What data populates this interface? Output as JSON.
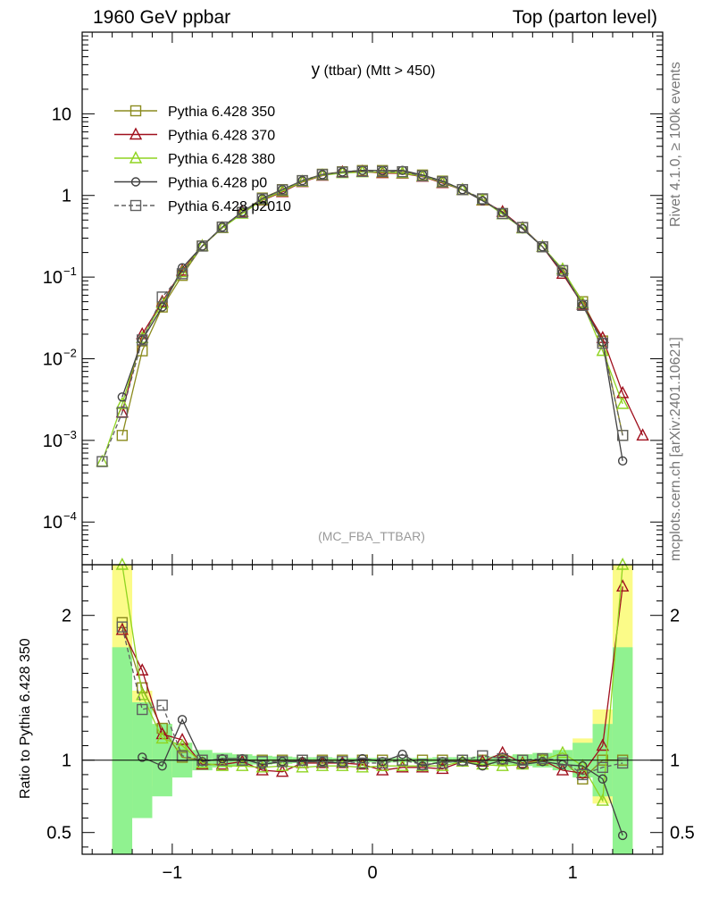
{
  "header": {
    "left": "1960 GeV ppbar",
    "right": "Top (parton level)"
  },
  "side_text": {
    "top": "Rivet 4.1.0, ≥ 100k events",
    "bottom": "mcplots.cern.ch [arXiv:2401.10621]"
  },
  "plot_title": {
    "main": "y",
    "sub": " (ttbar) (Mtt > 450)"
  },
  "watermark": "(MC_FBA_TTBAR)",
  "ratio_ylabel": "Ratio to Pythia 6.428 350",
  "colors": {
    "p350": "#8b8b1e",
    "p370": "#a0101e",
    "p380": "#8fd420",
    "p0": "#404040",
    "p2010": "#606060",
    "band_green": "#90f290",
    "band_yellow": "#fbfb88"
  },
  "chart_data": {
    "type": "line",
    "main": {
      "yscale": "log",
      "xlim": [
        -1.45,
        1.45
      ],
      "ylim": [
        3e-05,
        100
      ],
      "x_ticks": [
        -1,
        0,
        1
      ],
      "x_tick_labels": [
        "−1",
        "0",
        "1"
      ],
      "y_ticks": [
        0.0001,
        0.001,
        0.01,
        0.1,
        1,
        10
      ],
      "y_tick_labels": [
        [
          "10",
          "−4"
        ],
        [
          "10",
          "−3"
        ],
        [
          "10",
          "−2"
        ],
        [
          "10",
          "−1"
        ],
        [
          "1",
          ""
        ],
        [
          "10",
          ""
        ]
      ],
      "legend_position": "top-left",
      "legend": [
        "Pythia 6.428 350",
        "Pythia 6.428 370",
        "Pythia 6.428 380",
        "Pythia 6.428 p0",
        "Pythia 6.428 p2010"
      ],
      "x": [
        -1.35,
        -1.25,
        -1.15,
        -1.05,
        -0.95,
        -0.85,
        -0.75,
        -0.65,
        -0.55,
        -0.45,
        -0.35,
        -0.25,
        -0.15,
        -0.05,
        0.05,
        0.15,
        0.25,
        0.35,
        0.45,
        0.55,
        0.65,
        0.75,
        0.85,
        0.95,
        1.05,
        1.15,
        1.25,
        1.35
      ],
      "series": [
        {
          "name": "Pythia 6.428 350",
          "key": "p350",
          "marker": "square",
          "dash": false,
          "values": [
            null,
            0.00115,
            0.0125,
            0.043,
            0.105,
            0.24,
            0.41,
            0.62,
            0.93,
            1.18,
            1.52,
            1.82,
            1.95,
            2.02,
            2.02,
            1.95,
            1.78,
            1.5,
            1.18,
            0.89,
            0.6,
            0.405,
            0.235,
            0.12,
            0.05,
            0.0165,
            0.00115,
            null
          ]
        },
        {
          "name": "Pythia 6.428 370",
          "key": "p370",
          "marker": "triangle",
          "dash": false,
          "values": [
            null,
            0.0022,
            0.02,
            0.05,
            0.12,
            0.24,
            0.4,
            0.63,
            0.87,
            1.1,
            1.46,
            1.75,
            1.93,
            1.96,
            1.88,
            1.86,
            1.7,
            1.42,
            1.17,
            0.87,
            0.63,
            0.4,
            0.235,
            0.11,
            0.046,
            0.018,
            0.0038,
            0.00115
          ]
        },
        {
          "name": "Pythia 6.428 380",
          "key": "p380",
          "marker": "triangle",
          "dash": false,
          "values": [
            0.00055,
            0.0028,
            0.018,
            0.048,
            0.115,
            0.24,
            0.4,
            0.6,
            0.88,
            1.13,
            1.48,
            1.77,
            1.88,
            1.93,
            1.93,
            1.88,
            1.72,
            1.45,
            1.17,
            0.88,
            0.59,
            0.395,
            0.235,
            0.125,
            0.048,
            0.0125,
            0.0028,
            null
          ]
        },
        {
          "name": "Pythia 6.428 p0",
          "key": "p0",
          "marker": "circle",
          "dash": false,
          "values": [
            null,
            0.0034,
            0.017,
            0.043,
            0.13,
            0.24,
            0.41,
            0.63,
            0.91,
            1.18,
            1.52,
            1.8,
            1.94,
            2.03,
            2.01,
            2.03,
            1.78,
            1.5,
            1.18,
            0.86,
            0.62,
            0.39,
            0.235,
            0.115,
            0.046,
            0.016,
            0.00056,
            null
          ]
        },
        {
          "name": "Pythia 6.428 p2010",
          "key": "p2010",
          "marker": "square",
          "dash": true,
          "values": [
            0.00055,
            0.0022,
            0.017,
            0.057,
            0.11,
            0.24,
            0.41,
            0.62,
            0.91,
            1.17,
            1.52,
            1.8,
            1.93,
            1.97,
            1.97,
            1.95,
            1.74,
            1.47,
            1.18,
            0.91,
            0.6,
            0.405,
            0.235,
            0.12,
            0.045,
            0.0155,
            0.00115,
            null
          ]
        }
      ]
    },
    "ratio": {
      "ylabel": "Ratio to Pythia 6.428 350",
      "ylim": [
        0.35,
        2.35
      ],
      "y_ticks": [
        0.5,
        1,
        2
      ],
      "y_tick_labels": [
        "0.5",
        "1",
        "2"
      ],
      "band_edges": [
        -1.3,
        -1.2,
        -1.1,
        -1.0,
        -0.9,
        -0.8,
        -0.7,
        -0.6,
        -0.5,
        -0.4,
        -0.3,
        -0.2,
        -0.1,
        0.0,
        0.1,
        0.2,
        0.3,
        0.4,
        0.5,
        0.6,
        0.7,
        0.8,
        0.9,
        1.0,
        1.1,
        1.2,
        1.3
      ],
      "band_green_lo": [
        0,
        0.6,
        0.75,
        0.88,
        0.93,
        0.95,
        0.96,
        0.97,
        0.975,
        0.98,
        0.98,
        0.985,
        0.985,
        0.985,
        0.985,
        0.985,
        0.98,
        0.98,
        0.975,
        0.97,
        0.96,
        0.95,
        0.93,
        0.88,
        0.75,
        0
      ],
      "band_green_hi": [
        1.78,
        1.4,
        1.25,
        1.12,
        1.07,
        1.05,
        1.04,
        1.03,
        1.025,
        1.02,
        1.02,
        1.015,
        1.015,
        1.015,
        1.015,
        1.015,
        1.02,
        1.02,
        1.025,
        1.03,
        1.04,
        1.05,
        1.07,
        1.12,
        1.25,
        1.78
      ],
      "band_yellow_lo": [
        0,
        0.6,
        0.82,
        0.92,
        0.93,
        0.95,
        0.96,
        0.97,
        0.975,
        0.98,
        0.98,
        0.985,
        0.985,
        0.985,
        0.985,
        0.985,
        0.98,
        0.98,
        0.975,
        0.97,
        0.96,
        0.95,
        0.93,
        0.9,
        0.7,
        0
      ],
      "band_yellow_hi": [
        2.35,
        1.48,
        1.25,
        1.12,
        1.07,
        1.05,
        1.04,
        1.03,
        1.025,
        1.02,
        1.02,
        1.015,
        1.015,
        1.015,
        1.015,
        1.015,
        1.02,
        1.02,
        1.025,
        1.03,
        1.04,
        1.05,
        1.07,
        1.15,
        1.35,
        2.35
      ],
      "series": [
        {
          "key": "p350",
          "marker": "square",
          "dash": false,
          "values": [
            null,
            1.95,
            1.5,
            1.22,
            1.02,
            1.0,
            1.0,
            1.0,
            1.0,
            1.0,
            1.0,
            1.0,
            1.0,
            1.0,
            1.0,
            1.0,
            1.0,
            1.0,
            1.0,
            1.0,
            1.0,
            1.0,
            1.0,
            1.0,
            0.87,
            1.0,
            1.0,
            null
          ]
        },
        {
          "key": "p370",
          "marker": "triangle",
          "dash": false,
          "values": [
            null,
            1.9,
            1.62,
            1.18,
            1.14,
            0.97,
            0.97,
            0.99,
            0.93,
            0.92,
            0.98,
            0.98,
            0.98,
            0.97,
            0.93,
            0.95,
            0.95,
            0.94,
            0.99,
            0.99,
            1.05,
            0.98,
            1.0,
            0.93,
            0.91,
            1.1,
            2.2,
            null
          ]
        },
        {
          "key": "p380",
          "marker": "triangle",
          "dash": false,
          "values": [
            null,
            2.35,
            1.45,
            1.15,
            1.1,
            0.98,
            0.96,
            0.96,
            0.95,
            0.96,
            0.95,
            0.96,
            0.96,
            0.95,
            0.96,
            0.96,
            0.96,
            0.96,
            0.99,
            0.97,
            0.96,
            0.97,
            1.0,
            1.05,
            0.96,
            0.72,
            2.35,
            null
          ]
        },
        {
          "key": "p0",
          "marker": "circle",
          "dash": false,
          "values": [
            null,
            null,
            1.02,
            0.96,
            1.28,
            0.99,
            1.01,
            1.01,
            0.97,
            0.99,
            0.99,
            0.99,
            0.98,
            1.01,
            0.99,
            1.04,
            0.96,
            0.99,
            0.99,
            0.96,
            1.0,
            0.97,
            0.99,
            0.97,
            0.96,
            0.87,
            0.48,
            null
          ]
        },
        {
          "key": "p2010",
          "marker": "square",
          "dash": true,
          "values": [
            null,
            1.92,
            1.35,
            1.38,
            1.03,
            1.0,
            1.0,
            1.0,
            0.99,
            0.99,
            1.0,
            0.99,
            0.99,
            0.98,
            0.98,
            1.0,
            0.97,
            0.98,
            1.0,
            1.03,
            1.01,
            1.0,
            1.01,
            1.0,
            0.9,
            0.95,
            0.98,
            null
          ]
        }
      ]
    }
  }
}
